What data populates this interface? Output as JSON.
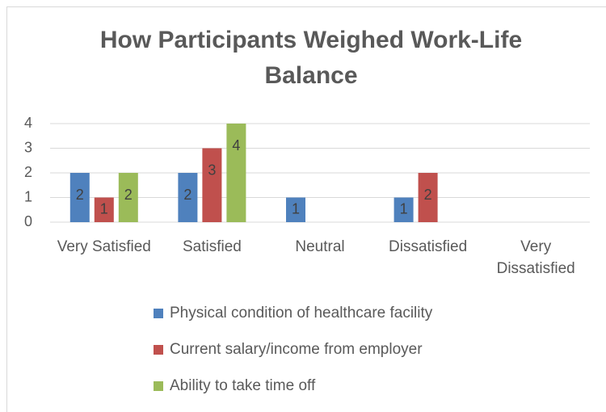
{
  "chart_data": {
    "type": "bar",
    "title": "How Participants Weighed Work-Life Balance",
    "categories": [
      "Very Satisfied",
      "Satisfied",
      "Neutral",
      "Dissatisfied",
      "Very Dissatisfied"
    ],
    "series": [
      {
        "name": "Physical condition of healthcare facility",
        "color": "#4f81bd",
        "values": [
          2,
          2,
          1,
          1,
          null
        ]
      },
      {
        "name": "Current salary/income from employer",
        "color": "#c0504d",
        "values": [
          1,
          3,
          null,
          2,
          null
        ]
      },
      {
        "name": "Ability to take time off",
        "color": "#9bbb59",
        "values": [
          2,
          4,
          null,
          null,
          null
        ]
      }
    ],
    "ylim": [
      0,
      4
    ],
    "yticks": [
      0,
      1,
      2,
      3,
      4
    ],
    "grid": true,
    "legend": "bottom"
  }
}
